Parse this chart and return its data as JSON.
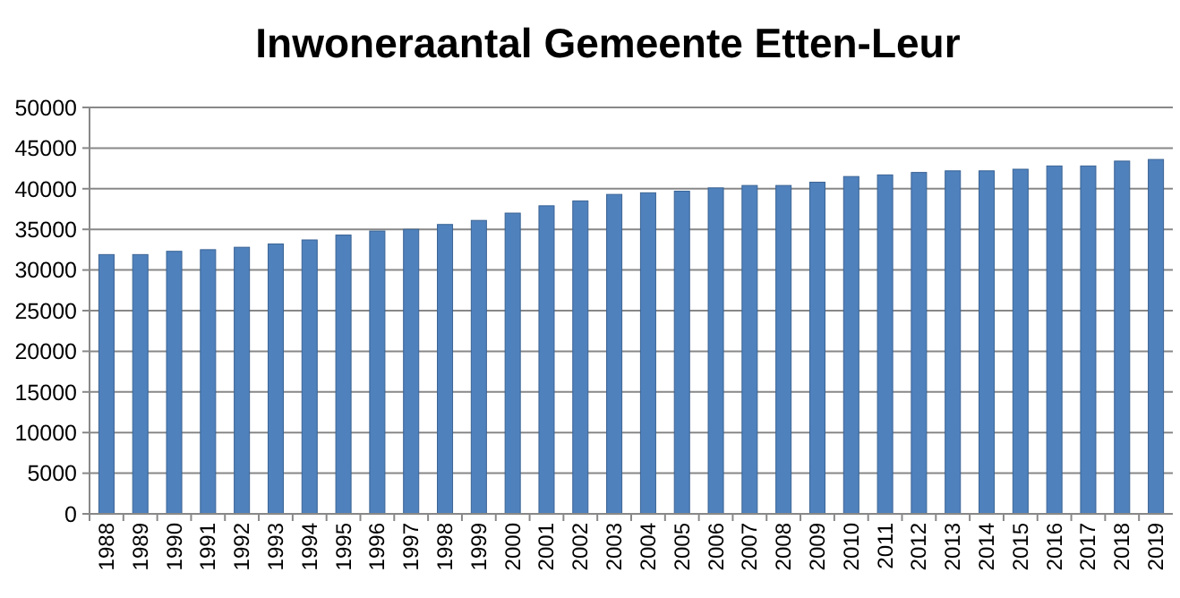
{
  "chart_data": {
    "type": "bar",
    "title": "Inwoneraantal Gemeente Etten-Leur",
    "categories": [
      "1988",
      "1989",
      "1990",
      "1991",
      "1992",
      "1993",
      "1994",
      "1995",
      "1996",
      "1997",
      "1998",
      "1999",
      "2000",
      "2001",
      "2002",
      "2003",
      "2004",
      "2005",
      "2006",
      "2007",
      "2008",
      "2009",
      "2010",
      "2011",
      "2012",
      "2013",
      "2014",
      "2015",
      "2016",
      "2017",
      "2018",
      "2019"
    ],
    "values": [
      31900,
      31900,
      32300,
      32500,
      32800,
      33200,
      33700,
      34300,
      34800,
      35000,
      35600,
      36100,
      37000,
      37900,
      38500,
      39300,
      39500,
      39700,
      40100,
      40400,
      40400,
      40800,
      41500,
      41700,
      42000,
      42200,
      42200,
      42400,
      42800,
      42800,
      43400,
      43600
    ],
    "color": "#4f81bd",
    "ylim": [
      0,
      50000
    ],
    "yticks": [
      0,
      5000,
      10000,
      15000,
      20000,
      25000,
      30000,
      35000,
      40000,
      45000,
      50000
    ],
    "grid": "y"
  }
}
